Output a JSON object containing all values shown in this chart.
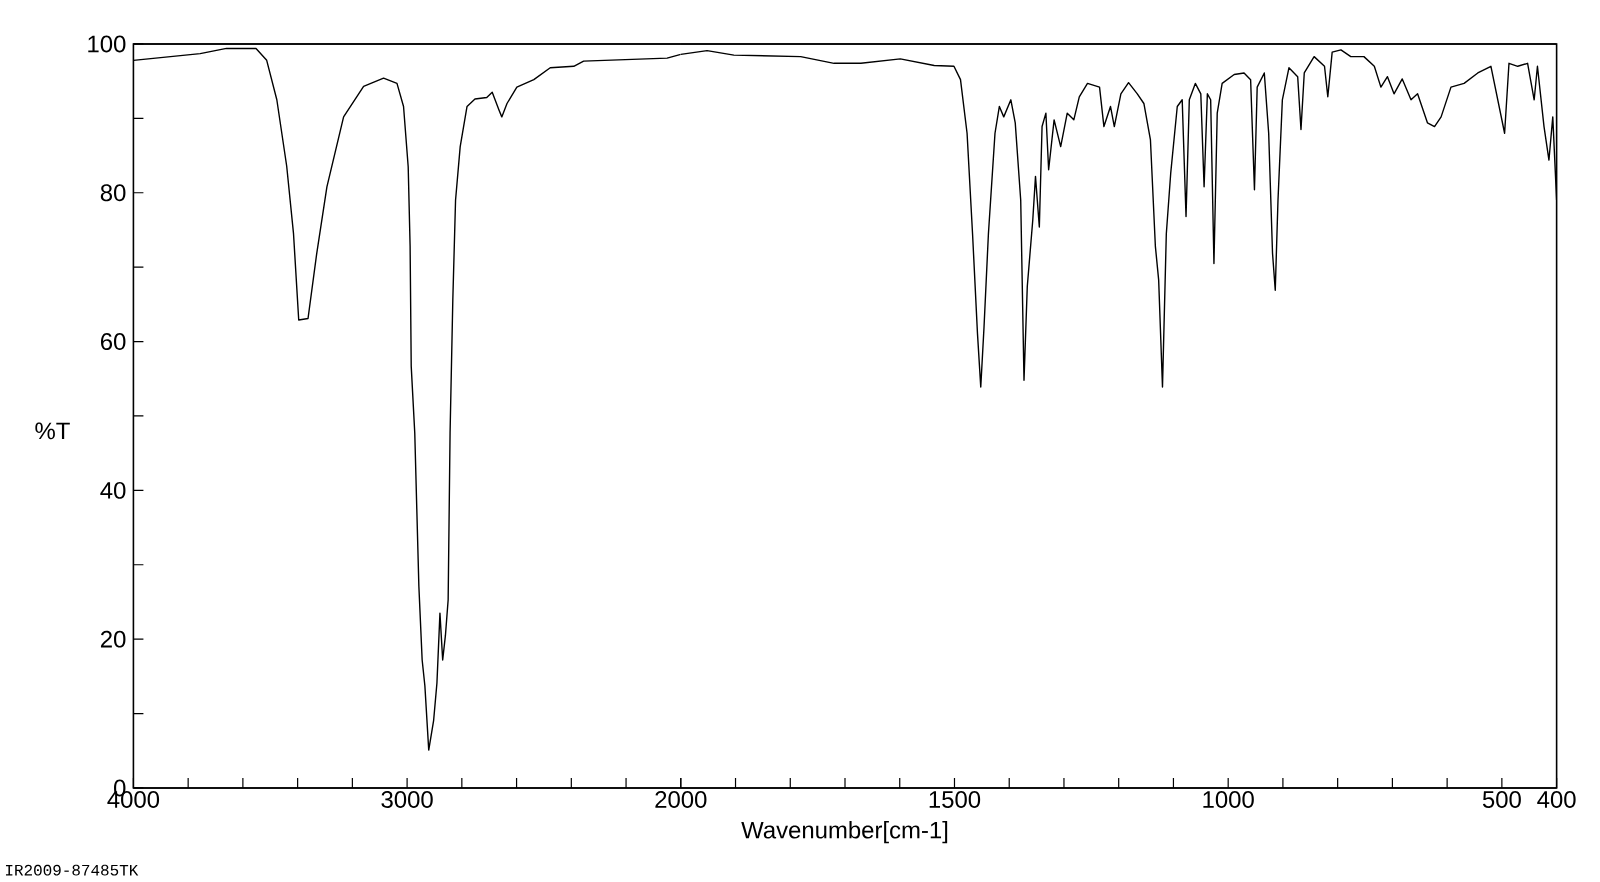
{
  "chart_data": [
    {
      "type": "line",
      "ylabel": "%T",
      "annotations": [
        "IR2009-87485TK"
      ],
      "xlim": [
        4000,
        2000
      ],
      "ylim": [
        0,
        100
      ],
      "xticks": [
        4000,
        {
          "value": 3800,
          "label": null
        },
        {
          "value": 3600,
          "label": null
        },
        {
          "value": 3400,
          "label": null
        },
        {
          "value": 3200,
          "label": null
        },
        3000,
        {
          "value": 2800,
          "label": null
        },
        {
          "value": 2600,
          "label": null
        },
        {
          "value": 2400,
          "label": null
        },
        {
          "value": 2200,
          "label": null
        },
        2000
      ],
      "yticks": [
        0,
        {
          "value": 10,
          "label": null
        },
        20,
        {
          "value": 30,
          "label": null
        },
        40,
        {
          "value": 50,
          "label": null
        },
        60,
        {
          "value": 70,
          "label": null
        },
        80,
        {
          "value": 90,
          "label": null
        },
        100
      ],
      "marker": "none",
      "x": [
        4000,
        3756,
        3660,
        3552,
        3513,
        3476,
        3440,
        3415,
        3396,
        3362,
        3330,
        3293,
        3232,
        3159,
        3086,
        3037,
        3013,
        2996,
        2989,
        2985,
        2972,
        2957,
        2945,
        2935,
        2921,
        2903,
        2891,
        2880,
        2870,
        2860,
        2850,
        2843,
        2833,
        2823,
        2806,
        2781,
        2752,
        2709,
        2689,
        2664,
        2654,
        2635,
        2599,
        2537,
        2477,
        2391,
        2355,
        2050,
        2000
      ],
      "series": [
        {
          "color": "#000000",
          "values": [
            97.8,
            98.7,
            99.4,
            99.4,
            97.8,
            92.5,
            83.6,
            74.5,
            62.9,
            63.1,
            71.9,
            80.8,
            90.2,
            94.3,
            95.4,
            94.7,
            91.6,
            83.5,
            72.8,
            56.7,
            47.7,
            27.1,
            17.2,
            13.7,
            5.1,
            9.1,
            14.1,
            23.5,
            17.2,
            20.5,
            25.3,
            47.7,
            65.6,
            79.0,
            86.2,
            91.6,
            92.6,
            92.8,
            93.5,
            91.1,
            90.2,
            92.0,
            94.2,
            95.2,
            96.8,
            97.0,
            97.7,
            98.1,
            98.6
          ]
        }
      ]
    },
    {
      "type": "line",
      "xlabel": "Wavenumber[cm-1]",
      "tick_labels": "x",
      "xlim": [
        2000,
        400
      ],
      "ylim": [
        0,
        100
      ],
      "xticks": [
        {
          "value": 2000,
          "label": null
        },
        {
          "value": 1900,
          "label": null
        },
        {
          "value": 1800,
          "label": null
        },
        {
          "value": 1700,
          "label": null
        },
        {
          "value": 1600,
          "label": null
        },
        1500,
        {
          "value": 1400,
          "label": null
        },
        {
          "value": 1300,
          "label": null
        },
        {
          "value": 1200,
          "label": null
        },
        {
          "value": 1100,
          "label": null
        },
        1000,
        {
          "value": 900,
          "label": null
        },
        {
          "value": 800,
          "label": null
        },
        {
          "value": 700,
          "label": null
        },
        {
          "value": 600,
          "label": null
        },
        500,
        400
      ],
      "marker": "none",
      "x": [
        2000,
        1952,
        1903,
        1781,
        1720,
        1671,
        1599,
        1537,
        1501,
        1489,
        1477,
        1467,
        1458,
        1452,
        1446,
        1438,
        1426,
        1418,
        1410,
        1397,
        1389,
        1379,
        1373,
        1367,
        1357,
        1352,
        1345,
        1340,
        1333,
        1328,
        1318,
        1306,
        1294,
        1282,
        1272,
        1257,
        1235,
        1227,
        1215,
        1208,
        1196,
        1182,
        1166,
        1154,
        1142,
        1133,
        1127,
        1120,
        1113,
        1105,
        1093,
        1084,
        1077,
        1071,
        1060,
        1050,
        1044,
        1038,
        1032,
        1026,
        1020,
        1011,
        989,
        971,
        959,
        952,
        947,
        934,
        926,
        919,
        914,
        909,
        901,
        889,
        873,
        867,
        861,
        843,
        824,
        818,
        810,
        794,
        776,
        752,
        733,
        721,
        709,
        697,
        682,
        666,
        654,
        636,
        623,
        611,
        593,
        569,
        544,
        520,
        495,
        487,
        471,
        453,
        441,
        435,
        423,
        414,
        407,
        400
      ],
      "series": [
        {
          "color": "#000000",
          "values": [
            98.6,
            99.1,
            98.5,
            98.3,
            97.4,
            97.4,
            98.0,
            97.1,
            97.0,
            95.2,
            88.0,
            74.5,
            61.1,
            53.9,
            62.0,
            74.5,
            88.0,
            91.6,
            90.2,
            92.5,
            89.4,
            79.0,
            54.8,
            67.4,
            76.3,
            82.2,
            75.4,
            88.9,
            90.7,
            83.1,
            89.8,
            86.2,
            90.7,
            89.8,
            92.9,
            94.7,
            94.2,
            88.9,
            91.6,
            88.9,
            93.3,
            94.8,
            93.3,
            92.0,
            87.1,
            72.8,
            68.3,
            53.9,
            74.5,
            82.6,
            91.6,
            92.5,
            76.8,
            92.5,
            94.7,
            93.3,
            80.8,
            93.3,
            92.5,
            70.5,
            90.7,
            94.7,
            95.9,
            96.1,
            95.2,
            80.4,
            94.2,
            96.1,
            88.0,
            71.9,
            66.9,
            79.0,
            92.5,
            96.8,
            95.6,
            88.5,
            96.1,
            98.3,
            97.0,
            92.9,
            98.9,
            99.2,
            98.3,
            98.3,
            97.0,
            94.2,
            95.6,
            93.3,
            95.3,
            92.5,
            93.3,
            89.4,
            88.9,
            90.2,
            94.2,
            94.7,
            96.1,
            97.0,
            88.0,
            97.4,
            97.0,
            97.4,
            92.5,
            97.0,
            88.9,
            84.4,
            90.2,
            79.0
          ]
        }
      ]
    }
  ]
}
